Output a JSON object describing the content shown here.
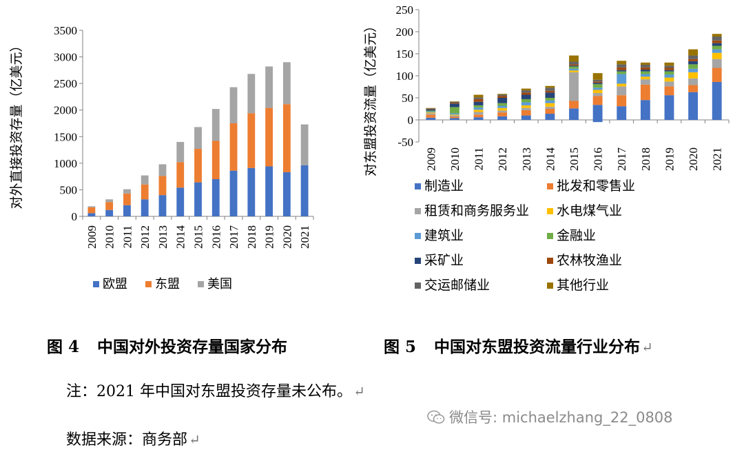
{
  "chart_data": [
    {
      "type": "bar",
      "stacked": true,
      "categories": [
        "2009",
        "2010",
        "2011",
        "2012",
        "2013",
        "2014",
        "2015",
        "2016",
        "2017",
        "2018",
        "2019",
        "2020",
        "2021"
      ],
      "series": [
        {
          "name": "欧盟",
          "color": "#4472C4",
          "values": [
            60,
            120,
            210,
            320,
            400,
            540,
            640,
            700,
            860,
            910,
            940,
            830,
            960
          ]
        },
        {
          "name": "东盟",
          "color": "#ED7D31",
          "values": [
            110,
            150,
            220,
            280,
            360,
            480,
            630,
            720,
            890,
            1030,
            1100,
            1280,
            0
          ]
        },
        {
          "name": "美国",
          "color": "#A5A5A5",
          "values": [
            20,
            50,
            80,
            170,
            220,
            380,
            410,
            600,
            680,
            740,
            780,
            790,
            770
          ]
        }
      ],
      "ylabel": "对外直接投资存量（亿美元）",
      "ylim": [
        0,
        3500
      ],
      "yticks": [
        0,
        500,
        1000,
        1500,
        2000,
        2500,
        3000,
        3500
      ],
      "grid": false,
      "legend": "bottom"
    },
    {
      "type": "bar",
      "stacked": true,
      "categories": [
        "2009",
        "2010",
        "2011",
        "2012",
        "2013",
        "2014",
        "2015",
        "2016",
        "2017",
        "2018",
        "2019",
        "2020",
        "2021"
      ],
      "series": [
        {
          "name": "制造业",
          "color": "#4472C4",
          "values": [
            5,
            4,
            6,
            8,
            10,
            14,
            26,
            34,
            31,
            45,
            56,
            63,
            86
          ]
        },
        {
          "name": "批发和零售业",
          "color": "#ED7D31",
          "values": [
            7,
            3,
            6,
            9,
            12,
            11,
            17,
            20,
            25,
            35,
            20,
            16,
            32
          ]
        },
        {
          "name": "租赁和商务服务业",
          "color": "#A5A5A5",
          "values": [
            3,
            3,
            6,
            4,
            5,
            5,
            65,
            7,
            20,
            12,
            11,
            15,
            20
          ]
        },
        {
          "name": "水电煤气业",
          "color": "#FFC000",
          "values": [
            2,
            2,
            5,
            6,
            6,
            8,
            4,
            7,
            6,
            6,
            9,
            14,
            14
          ]
        },
        {
          "name": "建筑业",
          "color": "#5B9BD5",
          "values": [
            2,
            3,
            5,
            5,
            7,
            6,
            4,
            5,
            22,
            6,
            7,
            8,
            8
          ]
        },
        {
          "name": "金融业",
          "color": "#70AD47",
          "values": [
            2,
            14,
            5,
            6,
            7,
            6,
            5,
            8,
            6,
            6,
            7,
            10,
            8
          ]
        },
        {
          "name": "采矿业",
          "color": "#264478",
          "values": [
            3,
            8,
            8,
            12,
            10,
            12,
            2,
            3,
            3,
            4,
            3,
            7,
            6
          ]
        },
        {
          "name": "农林牧渔业",
          "color": "#9E480E",
          "values": [
            1,
            2,
            6,
            4,
            5,
            4,
            3,
            3,
            6,
            5,
            5,
            5,
            6
          ]
        },
        {
          "name": "交运邮储业",
          "color": "#636363",
          "values": [
            1,
            2,
            4,
            3,
            5,
            7,
            6,
            4,
            7,
            6,
            5,
            8,
            9
          ]
        },
        {
          "name": "其他行业",
          "color": "#997300",
          "values": [
            1,
            1,
            6,
            2,
            4,
            4,
            14,
            15,
            8,
            5,
            7,
            14,
            6
          ]
        }
      ],
      "negative": {
        "制造业": [
          0,
          0,
          0,
          0,
          0,
          0,
          0,
          -5,
          0,
          0,
          0,
          0,
          0
        ]
      },
      "ylabel": "对东盟投资流量（亿美元）",
      "ylim": [
        -50,
        250
      ],
      "yticks": [
        -50,
        0,
        50,
        100,
        150,
        200,
        250
      ],
      "grid": false,
      "legend": "bottom"
    }
  ],
  "captions": {
    "fig4_num": "图 4",
    "fig4_title": "中国对外投资存量国家分布",
    "fig5_num": "图 5",
    "fig5_title": "中国对东盟投资流量行业分布"
  },
  "notes": {
    "note": "注：2021 年中国对东盟投资存量未公布。",
    "source": "数据来源：商务部"
  },
  "watermark": "微信号: michaelzhang_22_0808",
  "return_mark": "↵"
}
